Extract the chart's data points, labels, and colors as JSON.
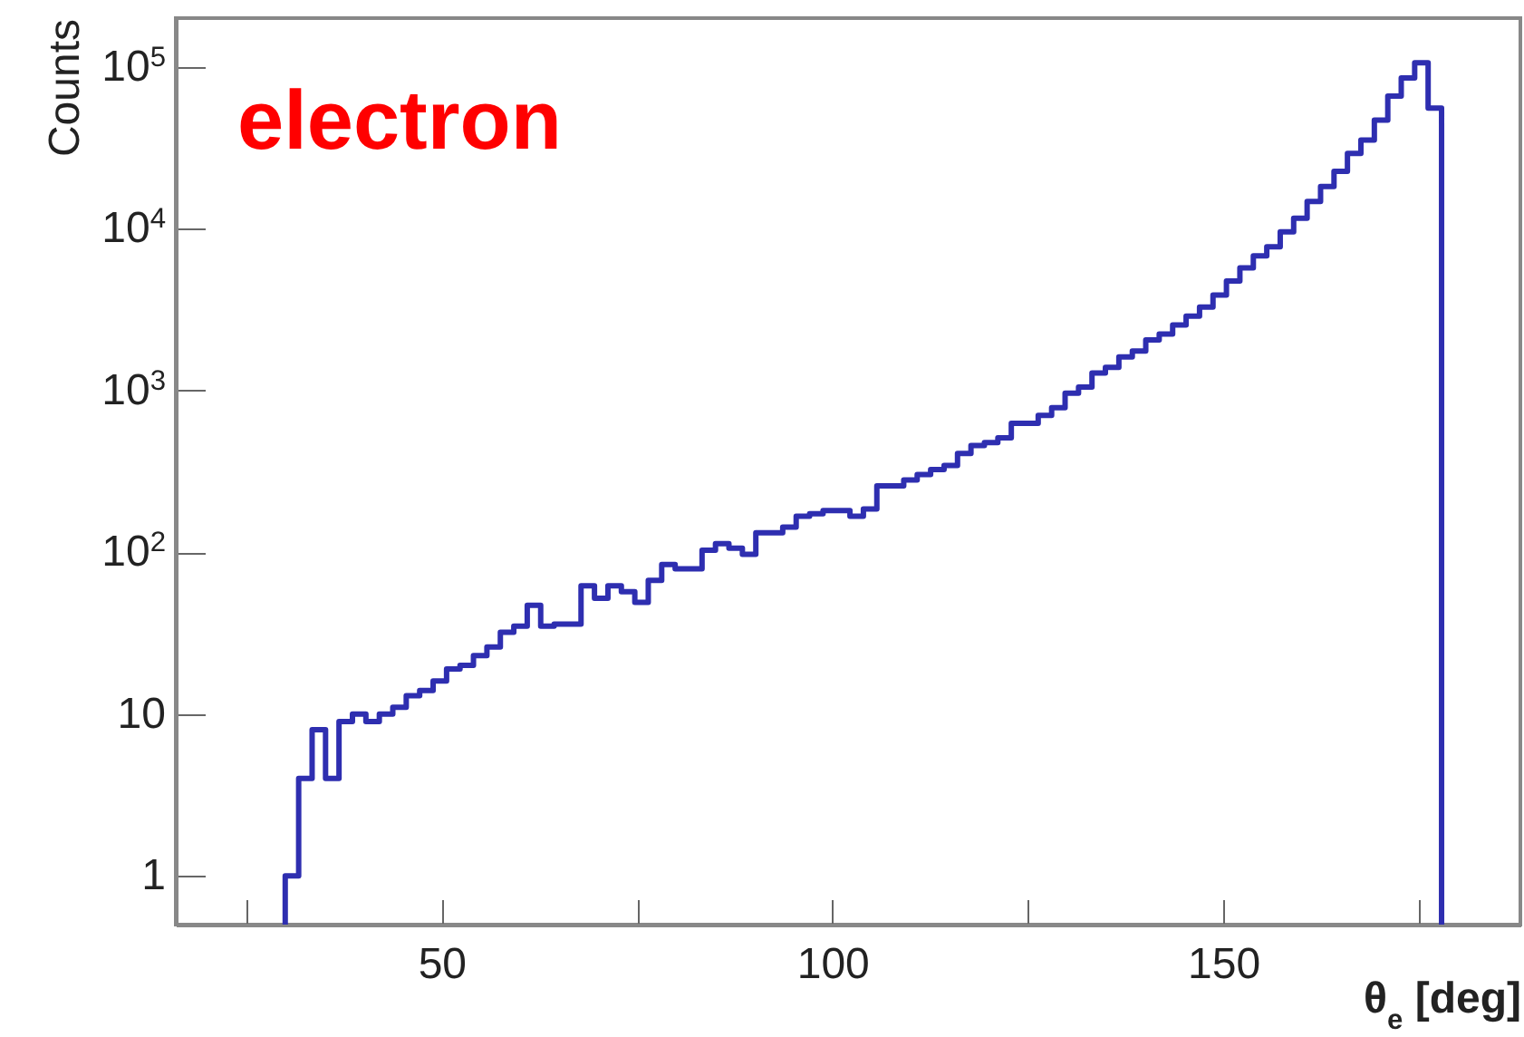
{
  "chart_data": {
    "type": "histogram",
    "xlabel": "θ$_{e}$ [deg]",
    "ylabel": "Counts",
    "annotations": [
      "electron"
    ],
    "color": "#2e2eb0",
    "log": "y",
    "grid": false,
    "xlim": [
      16,
      188
    ],
    "xticks": [
      {
        "value": 25,
        "label": null
      },
      50,
      {
        "value": 75,
        "label": null
      },
      100,
      {
        "value": 125,
        "label": null
      },
      150,
      {
        "value": 175,
        "label": null
      }
    ],
    "ylim": [
      0.5,
      200000
    ],
    "yticks": [
      1,
      10,
      {
        "value": 100,
        "label": "10$^{2}$"
      },
      {
        "value": 1000,
        "label": "10$^{3}$"
      },
      {
        "value": 10000,
        "label": "10$^{4}$"
      },
      {
        "value": 100000,
        "label": "10$^{5}$"
      }
    ],
    "bins": [
      30,
      31.72,
      33.44,
      35.16,
      36.88,
      38.6,
      40.32,
      42.04,
      43.76,
      45.48,
      47.2,
      48.92,
      50.64,
      52.36,
      54.08,
      55.8,
      57.52,
      59.24,
      60.96,
      62.68,
      64.4,
      66.12,
      67.84,
      69.56,
      71.28,
      73,
      74.72,
      76.44,
      78.16,
      79.88,
      81.6,
      83.32,
      85.04,
      86.76,
      88.48,
      90.2,
      91.92,
      93.64,
      95.36,
      97.08,
      98.8,
      100.52,
      102.24,
      103.96,
      105.68,
      107.4,
      109.12,
      110.84,
      112.56,
      114.28,
      116,
      117.72,
      119.44,
      121.16,
      122.88,
      124.6,
      126.32,
      128.04,
      129.76,
      131.48,
      133.2,
      134.92,
      136.64,
      138.36,
      140.08,
      141.8,
      143.52,
      145.24,
      146.96,
      148.68,
      150.4,
      152.12,
      153.84,
      155.56,
      157.28,
      159,
      160.72,
      162.44,
      164.16,
      165.88,
      167.6,
      169.32,
      171.04,
      172.76,
      174.48,
      176.2,
      177.92
    ],
    "values": [
      1,
      4,
      8,
      4,
      9,
      10,
      9,
      10,
      11,
      13,
      14,
      16,
      19,
      20,
      23,
      26,
      32,
      35,
      47,
      35,
      36,
      36,
      62,
      52,
      62,
      57,
      49,
      67,
      84,
      79,
      79,
      103,
      113,
      106,
      97,
      132,
      132,
      143,
      167,
      173,
      181,
      181,
      167,
      185,
      257,
      257,
      280,
      302,
      324,
      344,
      408,
      456,
      476,
      509,
      626,
      626,
      702,
      783,
      962,
      1050,
      1280,
      1390,
      1610,
      1750,
      2050,
      2230,
      2540,
      2880,
      3280,
      3890,
      4740,
      5730,
      6800,
      7730,
      9570,
      11600,
      14700,
      18200,
      22600,
      29200,
      35300,
      46800,
      65900,
      85300,
      106000,
      55600
    ]
  }
}
